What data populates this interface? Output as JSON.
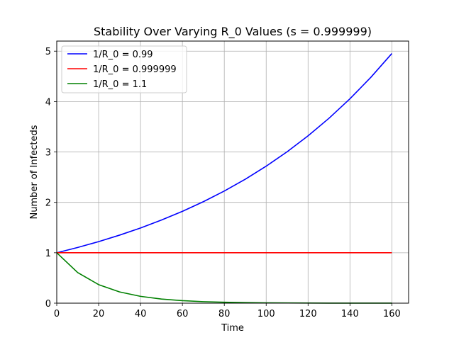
{
  "chart_data": {
    "type": "line",
    "title": "Stability Over Varying R_0 Values (s = 0.999999)",
    "xlabel": "Time",
    "ylabel": "Number of Infecteds",
    "xlim": [
      0,
      168
    ],
    "ylim": [
      0,
      5.2
    ],
    "xticks": [
      0,
      20,
      40,
      60,
      80,
      100,
      120,
      140,
      160
    ],
    "yticks": [
      0,
      1,
      2,
      3,
      4,
      5
    ],
    "grid": true,
    "legend_position": "top-left",
    "x": [
      0,
      10,
      20,
      30,
      40,
      50,
      60,
      70,
      80,
      90,
      100,
      110,
      120,
      130,
      140,
      150,
      160
    ],
    "series": [
      {
        "name": "1/R_0 = 0.99",
        "color": "#0000ff",
        "values": [
          1.0,
          1.105,
          1.221,
          1.35,
          1.492,
          1.649,
          1.822,
          2.013,
          2.225,
          2.459,
          2.718,
          3.004,
          3.32,
          3.669,
          4.055,
          4.482,
          4.953
        ]
      },
      {
        "name": "1/R_0 = 0.999999",
        "color": "#ff0000",
        "values": [
          1.0,
          1.0,
          1.0,
          1.0,
          1.0,
          1.0,
          1.0,
          1.0,
          1.0,
          1.0,
          1.0,
          1.0,
          1.0,
          1.0,
          1.0,
          1.0,
          1.0
        ]
      },
      {
        "name": "1/R_0 = 1.1",
        "color": "#008000",
        "values": [
          1.0,
          0.607,
          0.368,
          0.223,
          0.135,
          0.082,
          0.05,
          0.03,
          0.018,
          0.011,
          0.007,
          0.004,
          0.002,
          0.0015,
          0.0009,
          0.0006,
          0.0003
        ]
      }
    ]
  }
}
